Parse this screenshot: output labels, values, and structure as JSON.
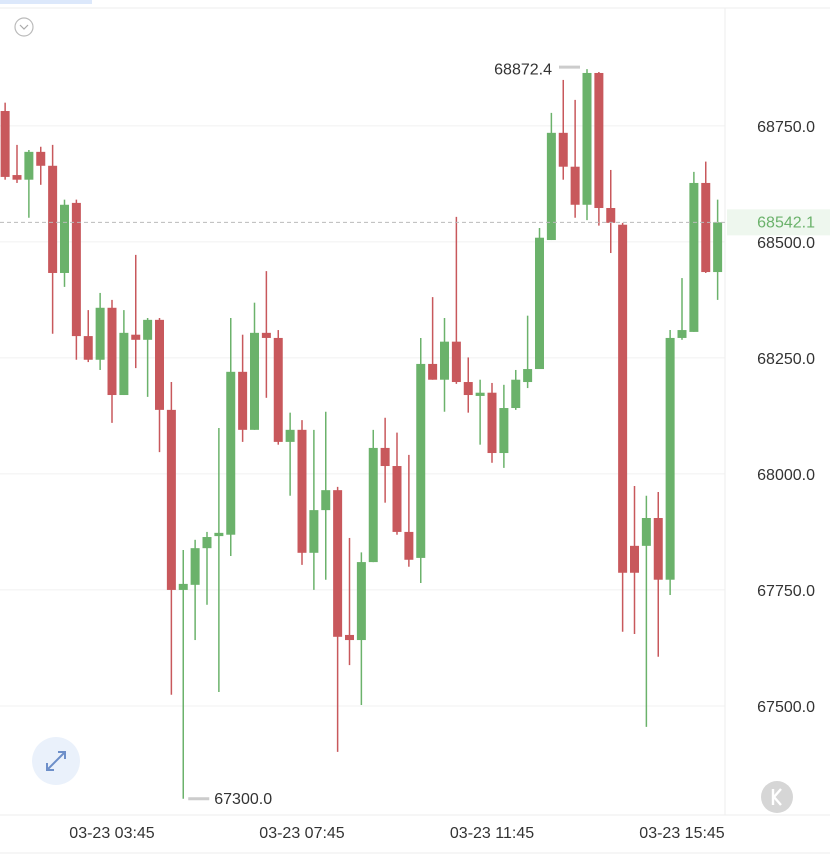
{
  "chart_data": {
    "type": "candlestick",
    "categories": [
      null,
      null,
      null,
      null,
      null,
      null,
      null,
      null,
      null,
      "03-23 03:45",
      null,
      null,
      null,
      null,
      null,
      null,
      null,
      null,
      null,
      null,
      null,
      null,
      null,
      null,
      null,
      "03-23 07:45",
      null,
      null,
      null,
      null,
      null,
      null,
      null,
      null,
      null,
      null,
      null,
      null,
      null,
      null,
      null,
      "03-23 11:45",
      null,
      null,
      null,
      null,
      null,
      null,
      null,
      null,
      null,
      null,
      null,
      null,
      null,
      null,
      null,
      "03-23 15:45",
      null,
      null,
      null
    ],
    "open": [
      68782,
      68644,
      68634,
      68694,
      68664,
      68433,
      68584,
      68297,
      68246,
      68358,
      68170,
      68300,
      68289,
      68332,
      68138,
      67750,
      67761,
      67840,
      67866,
      67869,
      68220,
      68095,
      68304,
      68293,
      68069,
      68095,
      67830,
      67922,
      67965,
      67653,
      67642,
      67810,
      68056,
      68017,
      67875,
      67819,
      68237,
      68203,
      68285,
      68198,
      68168,
      68175,
      68045,
      68142,
      68198,
      68226,
      68504,
      68735,
      68662,
      68580,
      68864,
      68573,
      68537,
      67845,
      67845,
      67905,
      67772,
      68293,
      68306,
      68627,
      68435
    ],
    "high": [
      68800,
      68709,
      68698,
      68705,
      68709,
      68591,
      68591,
      68353,
      68390,
      68375,
      68353,
      68472,
      68336,
      68336,
      68198,
      67836,
      67858,
      67875,
      68099,
      68336,
      68300,
      68369,
      68437,
      68310,
      68132,
      68116,
      68095,
      68134,
      67972,
      67862,
      67831,
      68095,
      68121,
      68089,
      68041,
      68293,
      68381,
      68336,
      68554,
      68251,
      68203,
      68196,
      68192,
      68224,
      68341,
      68530,
      68778,
      68849,
      68806,
      68872.4,
      68866,
      68655,
      68541,
      67974,
      67953,
      67961,
      68310,
      68422,
      68651,
      68673,
      68591
    ],
    "low": [
      68634,
      68627,
      68552,
      68623,
      68302,
      68403,
      68246,
      68241,
      68224,
      68110,
      68170,
      68228,
      68166,
      68047,
      67524,
      67300,
      67642,
      67718,
      67530,
      67823,
      68069,
      68095,
      68164,
      68063,
      67953,
      67804,
      67750,
      67772,
      67401,
      67588,
      67502,
      67810,
      67938,
      67869,
      67800,
      67765,
      68203,
      68134,
      68194,
      68132,
      68063,
      68024,
      68013,
      68138,
      68185,
      68226,
      68504,
      68634,
      68552,
      68547,
      68535,
      68476,
      67660,
      67655,
      67455,
      67606,
      67739,
      68289,
      68306,
      68433,
      68375
    ],
    "close": [
      68640,
      68634,
      68694,
      68664,
      68433,
      68580,
      68297,
      68246,
      68358,
      68170,
      68304,
      68289,
      68332,
      68138,
      67750,
      67763,
      67840,
      67864,
      67873,
      68220,
      68095,
      68304,
      68293,
      68069,
      68095,
      67830,
      67922,
      67965,
      67649,
      67642,
      67810,
      68056,
      68017,
      67875,
      67815,
      68237,
      68203,
      68285,
      68198,
      68170,
      68175,
      68045,
      68142,
      68203,
      68226,
      68509,
      68735,
      68662,
      68580,
      68864,
      68573,
      68541,
      67787,
      67787,
      67905,
      67772,
      68293,
      68310,
      68627,
      68435,
      68542.1
    ],
    "up_color": "#6bb26b",
    "down_color": "#c8585c",
    "ylim": [
      67265,
      69004
    ],
    "yticks": [
      {
        "value": 67500,
        "label": "67500.0"
      },
      {
        "value": 67750,
        "label": "67750.0"
      },
      {
        "value": 68000,
        "label": "68000.0"
      },
      {
        "value": 68250,
        "label": "68250.0"
      },
      {
        "value": 68500,
        "label": "68500.0"
      },
      {
        "value": 68750,
        "label": "68750.0"
      }
    ],
    "grid": true,
    "last_price": 68542.1,
    "high_label": "68872.4",
    "low_label": "67300.0"
  }
}
